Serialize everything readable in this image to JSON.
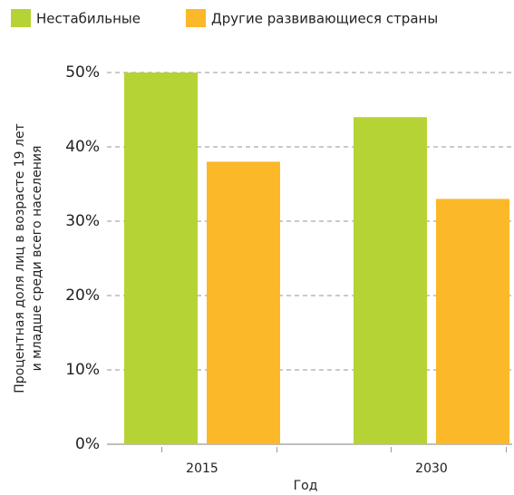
{
  "chart_data": {
    "type": "bar",
    "categories": [
      "2015",
      "2030"
    ],
    "series": [
      {
        "name": "Нестабильные",
        "color": "#b5d334",
        "values": [
          50,
          44
        ]
      },
      {
        "name": "Другие развивающиеся страны",
        "color": "#fbb829",
        "values": [
          38,
          33
        ]
      }
    ],
    "xlabel": "Год",
    "ylabel": [
      "Процентная доля лиц в возрасте 19 лет",
      "и младше среди всего населения"
    ],
    "ylim": [
      0,
      50
    ],
    "yticks": [
      {
        "value": 0,
        "label": "0%"
      },
      {
        "value": 10,
        "label": "10%"
      },
      {
        "value": 20,
        "label": "20%"
      },
      {
        "value": 30,
        "label": "30%"
      },
      {
        "value": 40,
        "label": "40%"
      },
      {
        "value": 50,
        "label": "50%"
      }
    ],
    "grid": true,
    "legend": "top"
  }
}
